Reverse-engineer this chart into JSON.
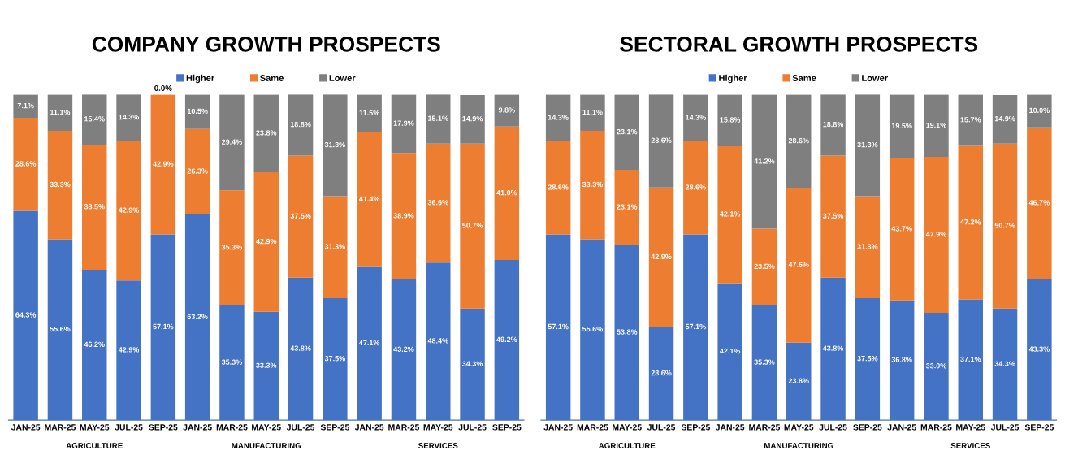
{
  "chart_data": [
    {
      "type": "bar",
      "title": "COMPANY GROWTH PROSPECTS",
      "stacked": true,
      "legend": "top",
      "tick_labels": "x",
      "categories": [
        "JAN-25",
        "MAR-25",
        "MAY-25",
        "JUL-25",
        "SEP-25",
        "JAN-25",
        "MAR-25",
        "MAY-25",
        "JUL-25",
        "SEP-25",
        "JAN-25",
        "MAR-25",
        "MAY-25",
        "JUL-25",
        "SEP-25"
      ],
      "annotations": [
        "AGRICULTURE",
        "MANUFACTURING",
        "SERVICES"
      ],
      "series": [
        {
          "name": "Higher",
          "color": "#4472c4",
          "values": [
            64.3,
            55.6,
            46.2,
            42.9,
            57.1,
            63.2,
            35.3,
            33.3,
            43.8,
            37.5,
            47.1,
            43.2,
            48.4,
            34.3,
            49.2
          ],
          "value_labels": [
            "64.3%",
            "55.6%",
            "46.2%",
            "42.9%",
            "57.1%",
            "63.2%",
            "35.3%",
            "33.3%",
            "43.8%",
            "37.5%",
            "47.1%",
            "43.2%",
            "48.4%",
            "34.3%",
            "49.2%"
          ]
        },
        {
          "name": "Same",
          "color": "#ed7d31",
          "values": [
            28.6,
            33.3,
            38.5,
            42.9,
            42.9,
            26.3,
            35.3,
            42.9,
            37.5,
            31.3,
            41.4,
            38.9,
            36.6,
            50.7,
            41.0
          ],
          "value_labels": [
            "28.6%",
            "33.3%",
            "38.5%",
            "42.9%",
            "42.9%",
            "26.3%",
            "35.3%",
            "42.9%",
            "37.5%",
            "31.3%",
            "41.4%",
            "38.9%",
            "36.6%",
            "50.7%",
            "41.0%"
          ]
        },
        {
          "name": "Lower",
          "color": "#7f7f7f",
          "values": [
            7.1,
            11.1,
            15.4,
            14.3,
            0.0,
            10.5,
            29.4,
            23.8,
            18.8,
            31.3,
            11.5,
            17.9,
            15.1,
            14.9,
            9.8
          ],
          "value_labels": [
            "7.1%",
            "11.1%",
            "15.4%",
            "14.3%",
            "0.0%",
            "10.5%",
            "29.4%",
            "23.8%",
            "18.8%",
            "31.3%",
            "11.5%",
            "17.9%",
            "15.1%",
            "14.9%",
            "9.8%"
          ]
        }
      ]
    },
    {
      "type": "bar",
      "title": "SECTORAL GROWTH PROSPECTS",
      "stacked": true,
      "legend": "top",
      "tick_labels": "x",
      "categories": [
        "JAN-25",
        "MAR-25",
        "MAY-25",
        "JUL-25",
        "SEP-25",
        "JAN-25",
        "MAR-25",
        "MAY-25",
        "JUL-25",
        "SEP-25",
        "JAN-25",
        "MAR-25",
        "MAY-25",
        "JUL-25",
        "SEP-25"
      ],
      "annotations": [
        "AGRICULTURE",
        "MANUFACTURING",
        "SERVICES"
      ],
      "series": [
        {
          "name": "Higher",
          "color": "#4472c4",
          "values": [
            57.1,
            55.6,
            53.8,
            28.6,
            57.1,
            42.1,
            35.3,
            23.8,
            43.8,
            37.5,
            36.8,
            33.0,
            37.1,
            34.3,
            43.3
          ],
          "value_labels": [
            "57.1%",
            "55.6%",
            "53.8%",
            "28.6%",
            "57.1%",
            "42.1%",
            "35.3%",
            "23.8%",
            "43.8%",
            "37.5%",
            "36.8%",
            "33.0%",
            "37.1%",
            "34.3%",
            "43.3%"
          ]
        },
        {
          "name": "Same",
          "color": "#ed7d31",
          "values": [
            28.6,
            33.3,
            23.1,
            42.9,
            28.6,
            42.1,
            23.5,
            47.6,
            37.5,
            31.3,
            43.7,
            47.9,
            47.2,
            50.7,
            46.7
          ],
          "value_labels": [
            "28.6%",
            "33.3%",
            "23.1%",
            "42.9%",
            "28.6%",
            "42.1%",
            "23.5%",
            "47.6%",
            "37.5%",
            "31.3%",
            "43.7%",
            "47.9%",
            "47.2%",
            "50.7%",
            "46.7%"
          ]
        },
        {
          "name": "Lower",
          "color": "#7f7f7f",
          "values": [
            14.3,
            11.1,
            23.1,
            28.6,
            14.3,
            15.8,
            41.2,
            28.6,
            18.8,
            31.3,
            19.5,
            19.1,
            15.7,
            14.9,
            10.0
          ],
          "value_labels": [
            "14.3%",
            "11.1%",
            "23.1%",
            "28.6%",
            "14.3%",
            "15.8%",
            "41.2%",
            "28.6%",
            "18.8%",
            "31.3%",
            "19.5%",
            "19.1%",
            "15.7%",
            "14.9%",
            "10.0%"
          ]
        }
      ]
    }
  ]
}
